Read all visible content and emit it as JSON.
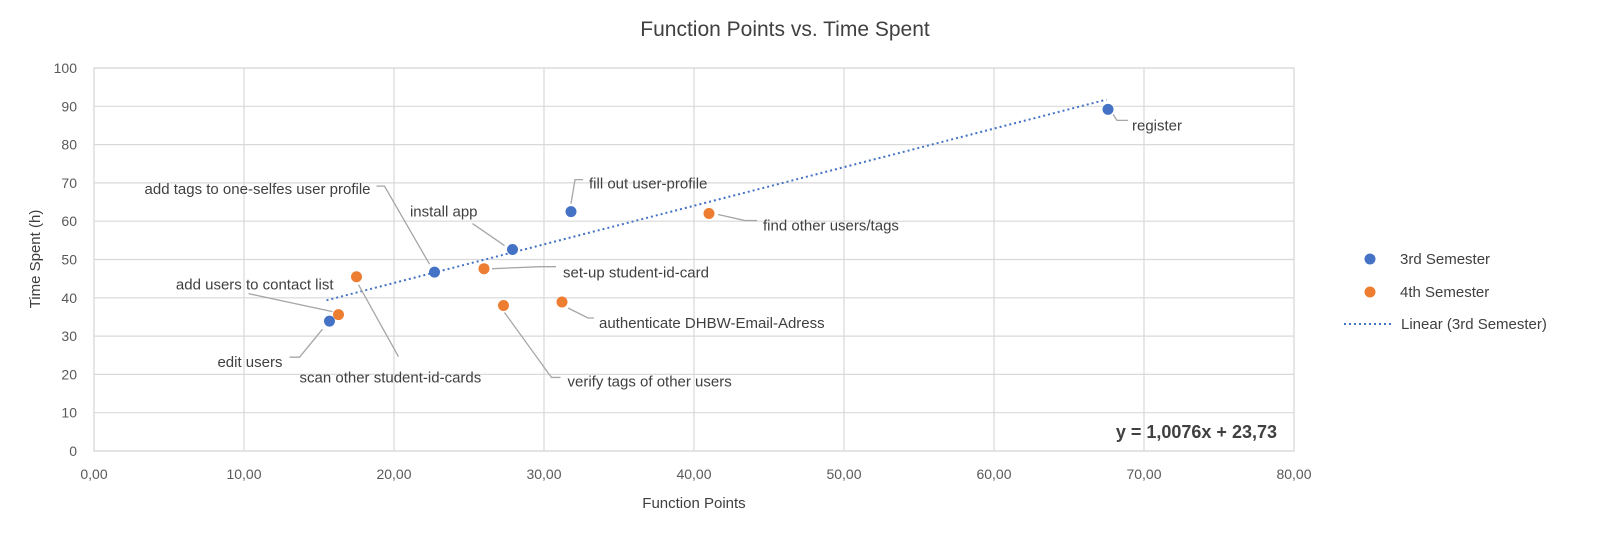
{
  "chart_data": {
    "type": "scatter",
    "title": "Function Points vs. Time Spent",
    "xlabel": "Function Points",
    "ylabel": "Time Spent (h)",
    "xlim": [
      0,
      80
    ],
    "ylim": [
      0,
      100
    ],
    "x_ticks": [
      "0,00",
      "10,00",
      "20,00",
      "30,00",
      "40,00",
      "50,00",
      "60,00",
      "70,00",
      "80,00"
    ],
    "y_ticks": [
      "0",
      "10",
      "20",
      "30",
      "40",
      "50",
      "60",
      "70",
      "80",
      "90",
      "100"
    ],
    "grid": true,
    "legend_position": "right",
    "series": [
      {
        "name": "3rd Semester",
        "color": "#4472C4",
        "points": [
          {
            "x": 15.7,
            "y": 33.9,
            "label": "edit users"
          },
          {
            "x": 22.7,
            "y": 46.7,
            "label": "add tags to one-selfes user profile"
          },
          {
            "x": 27.9,
            "y": 52.6,
            "label": "install app"
          },
          {
            "x": 31.8,
            "y": 62.5,
            "label": "fill out user-profile"
          },
          {
            "x": 67.6,
            "y": 89.2,
            "label": "register"
          }
        ]
      },
      {
        "name": "4th Semester",
        "color": "#ED7D31",
        "points": [
          {
            "x": 16.3,
            "y": 35.6,
            "label": "add users to contact list"
          },
          {
            "x": 17.5,
            "y": 45.5,
            "label": "scan other student-id-cards"
          },
          {
            "x": 26.0,
            "y": 47.6,
            "label": "set-up student-id-card"
          },
          {
            "x": 27.3,
            "y": 38.0,
            "label": "verify tags of other users"
          },
          {
            "x": 31.2,
            "y": 38.9,
            "label": "authenticate DHBW-Email-Adress"
          },
          {
            "x": 41.0,
            "y": 62.0,
            "label": "find other users/tags"
          }
        ]
      }
    ],
    "trendline": {
      "name": "Linear (3rd Semester)",
      "color": "#4472C4",
      "style": "dotted",
      "slope": 1.0076,
      "intercept": 23.73,
      "x_range": [
        15.5,
        67.5
      ],
      "equation": "y = 1,0076x + 23,73"
    }
  }
}
